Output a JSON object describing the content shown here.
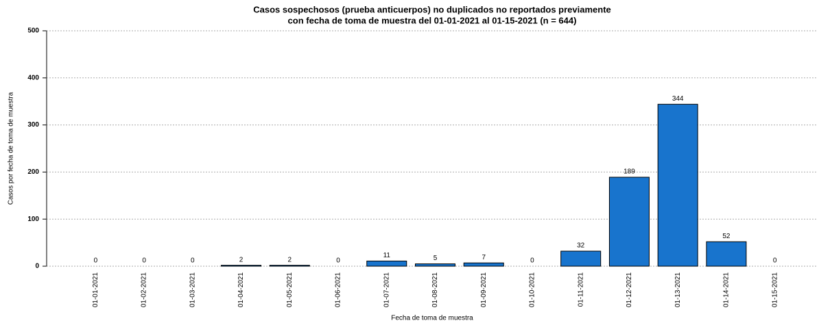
{
  "chart_data": {
    "type": "bar",
    "title": [
      "Casos sospechosos (prueba anticuerpos) no duplicados no reportados previamente",
      "con fecha de toma de muestra del 01-01-2021 al 01-15-2021 (n = 644)"
    ],
    "x_label": "Fecha de toma de muestra",
    "y_label": "Casos por fecha de toma de muestra",
    "categories": [
      "01-01-2021",
      "01-02-2021",
      "01-03-2021",
      "01-04-2021",
      "01-05-2021",
      "01-06-2021",
      "01-07-2021",
      "01-08-2021",
      "01-09-2021",
      "01-10-2021",
      "01-11-2021",
      "01-12-2021",
      "01-13-2021",
      "01-14-2021",
      "01-15-2021"
    ],
    "values": [
      0,
      0,
      0,
      2,
      2,
      0,
      11,
      5,
      7,
      0,
      32,
      189,
      344,
      52,
      0
    ],
    "color": "#1874cd",
    "ylim": [
      0,
      500
    ],
    "yticks": [
      0,
      100,
      200,
      300,
      400,
      500
    ],
    "grid": true
  }
}
